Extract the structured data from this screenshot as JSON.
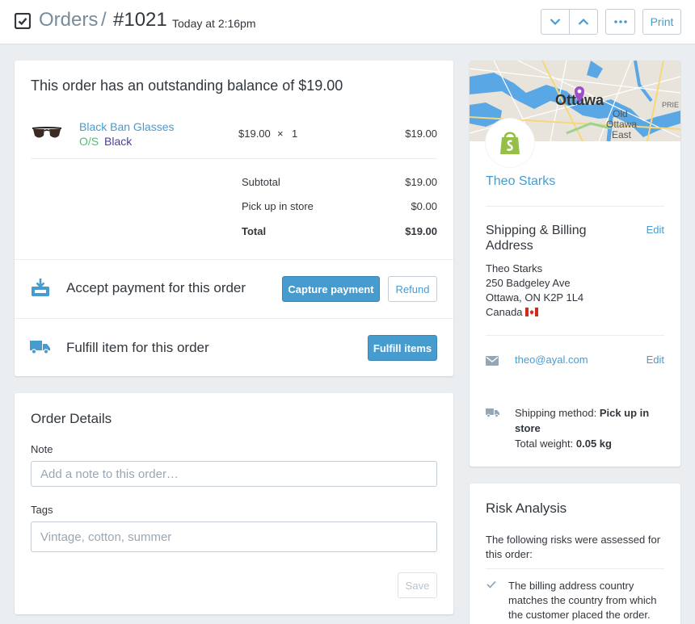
{
  "header": {
    "breadcrumb_root": "Orders",
    "breadcrumb_separator": "/",
    "order_number": "#1021",
    "timestamp": "Today at 2:16pm",
    "more_label": "•••",
    "print_label": "Print"
  },
  "order": {
    "balance_message": "This order has an outstanding balance of $19.00",
    "item": {
      "name": "Black Ban Glasses",
      "sku": "O/S",
      "variant": "Black",
      "price": "$19.00",
      "times": "×",
      "quantity": "1",
      "line_total": "$19.00"
    },
    "summary": [
      {
        "label": "Subtotal",
        "value": "$19.00"
      },
      {
        "label": "Pick up in store",
        "value": "$0.00"
      },
      {
        "label": "Total",
        "value": "$19.00"
      }
    ],
    "payment_text": "Accept payment for this order",
    "capture_label": "Capture payment",
    "refund_label": "Refund",
    "fulfill_text": "Fulfill item for this order",
    "fulfill_label": "Fulfill items"
  },
  "details": {
    "title": "Order Details",
    "note_label": "Note",
    "note_placeholder": "Add a note to this order…",
    "tags_label": "Tags",
    "tags_placeholder": "Vintage, cotton, summer",
    "save_label": "Save"
  },
  "customer": {
    "map_city": "Ottawa",
    "map_district1": "Old",
    "map_district2": "Ottawa",
    "map_district3": "East",
    "map_district4": "PRIE",
    "name": "Theo Starks",
    "address_title": "Shipping & Billing Address",
    "edit_label": "Edit",
    "address_lines": [
      "Theo Starks",
      "250 Badgeley Ave",
      "Ottawa, ON K2P 1L4",
      "Canada"
    ],
    "email": "theo@ayal.com",
    "email_edit_label": "Edit",
    "shipping_method_label": "Shipping method:",
    "shipping_method_value": "Pick up in store",
    "weight_label": "Total weight:",
    "weight_value": "0.05 kg"
  },
  "risk": {
    "title": "Risk Analysis",
    "intro": "The following risks were assessed for this order:",
    "items": [
      "The billing address country matches the country from which the customer placed the order."
    ]
  },
  "colors": {
    "accent": "#479ccf",
    "background": "#ebeef0",
    "sku_green": "#4bbf73",
    "variant_purple": "#4a3e9a"
  }
}
